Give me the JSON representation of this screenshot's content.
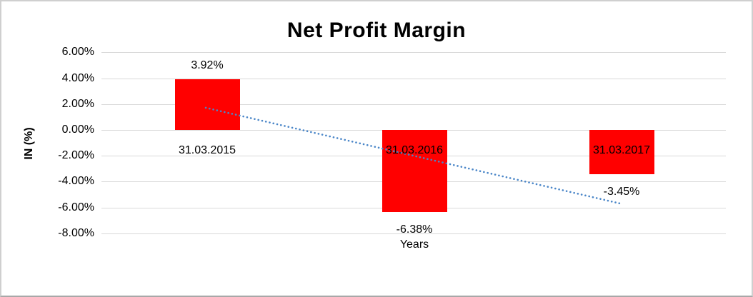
{
  "chart_data": {
    "type": "bar",
    "title": "Net Profit Margin",
    "xlabel": "Years",
    "ylabel": "IN (%)",
    "categories": [
      "31.03.2015",
      "31.03.2016",
      "31.03.2017"
    ],
    "values": [
      3.92,
      -6.38,
      -3.45
    ],
    "data_labels": [
      "3.92%",
      "-6.38%",
      "-3.45%"
    ],
    "bar_color": "#ff0000",
    "grid": true,
    "legend": "none",
    "ylim": [
      -8.6,
      6.3
    ],
    "yticks": [
      {
        "label": "6.00%",
        "value": 6
      },
      {
        "label": "4.00%",
        "value": 4
      },
      {
        "label": "2.00%",
        "value": 2
      },
      {
        "label": "0.00%",
        "value": 0
      },
      {
        "label": "-2.00%",
        "value": -2
      },
      {
        "label": "-4.00%",
        "value": -4
      },
      {
        "label": "-6.00%",
        "value": -6
      },
      {
        "label": "-8.00%",
        "value": -8
      }
    ],
    "trendline": {
      "type": "linear",
      "style": "dotted",
      "color": "#4a86c8",
      "start_value": 1.72,
      "end_value": -5.72
    }
  }
}
